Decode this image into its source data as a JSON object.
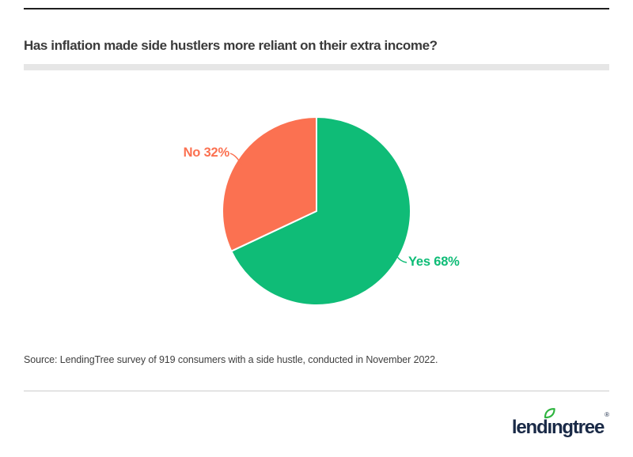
{
  "header": {
    "title": "Has inflation made side hustlers more reliant on their extra income?"
  },
  "chart_data": {
    "type": "pie",
    "title": "Has inflation made side hustlers more reliant on their extra income?",
    "slices": [
      {
        "label": "Yes",
        "value": 68,
        "display": "Yes 68%",
        "color": "#0fbc77"
      },
      {
        "label": "No",
        "value": 32,
        "display": "No 32%",
        "color": "#fb7151"
      }
    ],
    "start_angle_deg": 0,
    "direction": "clockwise",
    "legend": "none",
    "label_style": "direct slice labels with leader lines"
  },
  "footer": {
    "source": "Source: LendingTree survey of 919 consumers with a side hustle, conducted in November 2022."
  },
  "logo": {
    "wordmark_pre": "lend",
    "wordmark_i": "ı",
    "wordmark_post": "ngtree",
    "registered": "®",
    "leaf_color": "#2eb43f",
    "text_color": "#1a2a47"
  },
  "colors": {
    "yes_green": "#0fbc77",
    "no_orange": "#fb7151",
    "title_text": "#3b3b3b",
    "rule_dark": "#1e1e1e",
    "rule_light_gray": "#e6e6e6",
    "divider_gray": "#cccccc"
  }
}
